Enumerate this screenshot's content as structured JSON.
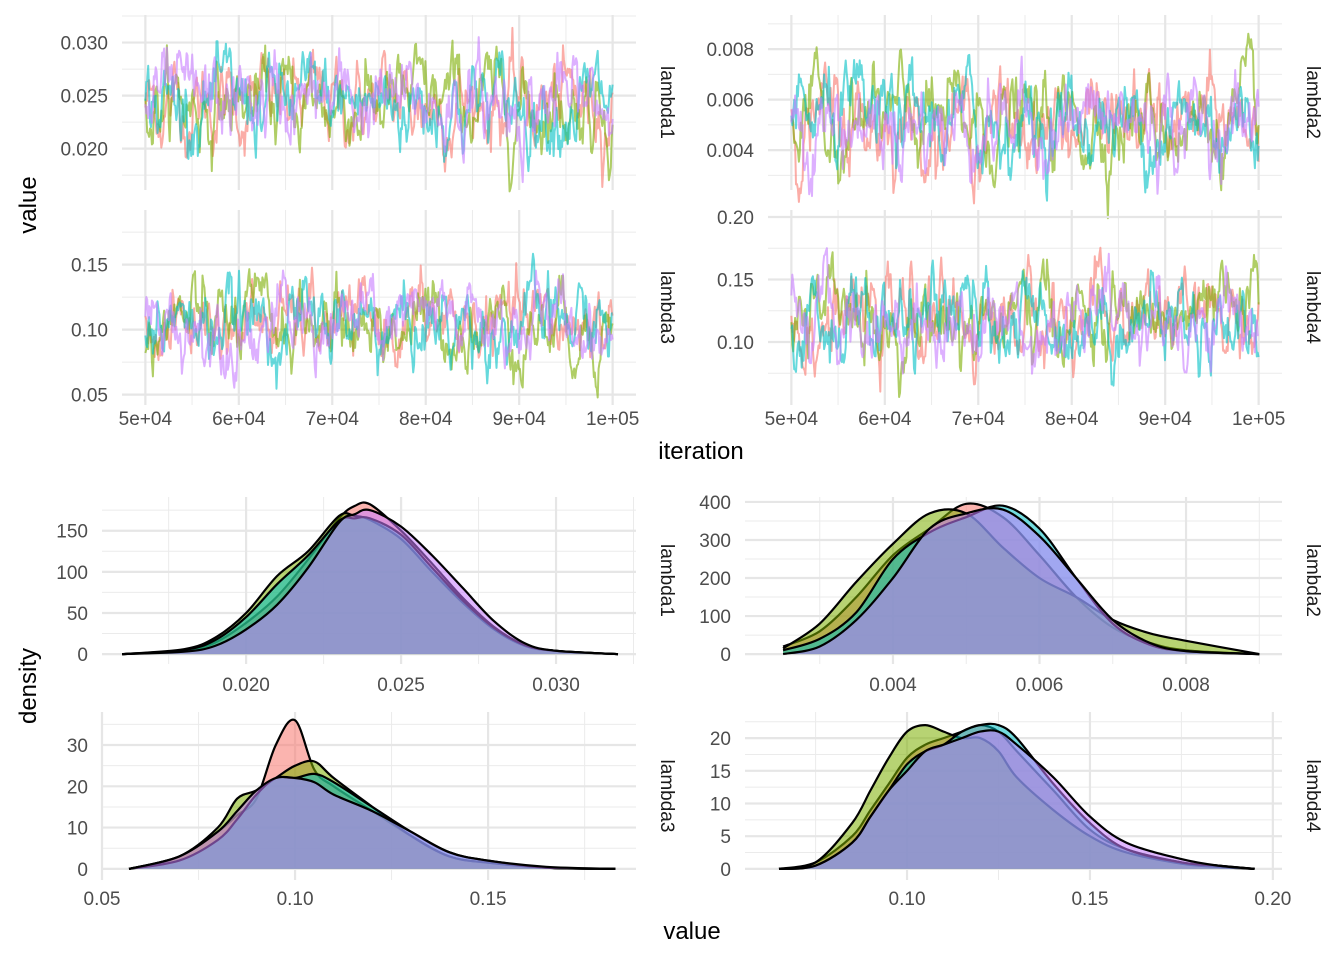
{
  "colors": {
    "chain1": "#F8766D",
    "chain2": "#7CAE00",
    "chain3": "#00BFC4",
    "chain4": "#C77CFF"
  },
  "chart_data": [
    {
      "type": "line",
      "title": "",
      "xlabel": "iteration",
      "ylabel": "value",
      "grid": true,
      "legend": "none",
      "chains": 4,
      "panels": [
        {
          "strip": "lambda1",
          "xlim": [
            47500,
            102500
          ],
          "ylim": [
            0.0161,
            0.0326
          ],
          "xticks": [
            50000,
            60000,
            70000,
            80000,
            90000,
            100000
          ],
          "xtick_labels": [
            "5e+04",
            "6e+04",
            "7e+04",
            "8e+04",
            "9e+04",
            "1e+05"
          ],
          "yticks": [
            0.02,
            0.025,
            0.03
          ],
          "ytick_labels": [
            "0.020",
            "0.025",
            "0.030"
          ],
          "approx_mean": 0.0243,
          "approx_sd": 0.0023,
          "show_x_labels": false
        },
        {
          "strip": "lambda2",
          "xlim": [
            47500,
            102500
          ],
          "ylim": [
            0.00242,
            0.00935
          ],
          "xticks": [
            50000,
            60000,
            70000,
            80000,
            90000,
            100000
          ],
          "xtick_labels": [
            "5e+04",
            "6e+04",
            "7e+04",
            "8e+04",
            "9e+04",
            "1e+05"
          ],
          "yticks": [
            0.004,
            0.006,
            0.008
          ],
          "ytick_labels": [
            "0.004",
            "0.006",
            "0.008"
          ],
          "approx_mean": 0.0051,
          "approx_sd": 0.001,
          "show_x_labels": false
        },
        {
          "strip": "lambda3",
          "xlim": [
            47500,
            102500
          ],
          "ylim": [
            0.042,
            0.192
          ],
          "xticks": [
            50000,
            60000,
            70000,
            80000,
            90000,
            100000
          ],
          "xtick_labels": [
            "5e+04",
            "6e+04",
            "7e+04",
            "8e+04",
            "9e+04",
            "1e+05"
          ],
          "yticks": [
            0.05,
            0.1,
            0.15
          ],
          "ytick_labels": [
            "0.05",
            "0.10",
            "0.15"
          ],
          "approx_mean": 0.104,
          "approx_sd": 0.017,
          "show_x_labels": true
        },
        {
          "strip": "lambda4",
          "xlim": [
            47500,
            102500
          ],
          "ylim": [
            0.0496,
            0.2056
          ],
          "xticks": [
            50000,
            60000,
            70000,
            80000,
            90000,
            100000
          ],
          "xtick_labels": [
            "5e+04",
            "6e+04",
            "7e+04",
            "8e+04",
            "9e+04",
            "1e+05"
          ],
          "yticks": [
            0.1,
            0.15,
            0.2
          ],
          "ytick_labels": [
            "0.10",
            "0.15",
            "0.20"
          ],
          "approx_mean": 0.118,
          "approx_sd": 0.019,
          "show_x_labels": true
        }
      ]
    },
    {
      "type": "area",
      "title": "",
      "xlabel": "value",
      "ylabel": "density",
      "grid": true,
      "legend": "none",
      "panels": [
        {
          "strip": "lambda1",
          "xlim": [
            0.01535,
            0.03258
          ],
          "ylim": [
            -12,
            191
          ],
          "xticks": [
            0.02,
            0.025,
            0.03
          ],
          "xtick_labels": [
            "0.020",
            "0.025",
            "0.030"
          ],
          "yticks": [
            0,
            50,
            100,
            150
          ],
          "ytick_labels": [
            "0",
            "50",
            "100",
            "150"
          ],
          "x": [
            0.016,
            0.018,
            0.019,
            0.02,
            0.021,
            0.022,
            0.023,
            0.0235,
            0.024,
            0.025,
            0.026,
            0.027,
            0.028,
            0.029,
            0.03,
            0.032
          ],
          "series": [
            {
              "values": [
                0,
                4,
                14,
                38,
                70,
                115,
                165,
                180,
                182,
                150,
                110,
                68,
                33,
                11,
                4,
                0
              ]
            },
            {
              "values": [
                0,
                6,
                20,
                50,
                95,
                125,
                168,
                168,
                163,
                140,
                100,
                62,
                30,
                10,
                4,
                0
              ]
            },
            {
              "values": [
                0,
                5,
                17,
                45,
                85,
                120,
                162,
                165,
                165,
                145,
                105,
                65,
                32,
                11,
                4,
                0
              ]
            },
            {
              "values": [
                0,
                3,
                10,
                30,
                60,
                105,
                160,
                170,
                175,
                155,
                120,
                80,
                40,
                13,
                4,
                0
              ]
            }
          ]
        },
        {
          "strip": "lambda2",
          "xlim": [
            0.00198,
            0.00931
          ],
          "ylim": [
            -26,
            413
          ],
          "xticks": [
            0.004,
            0.006,
            0.008
          ],
          "xtick_labels": [
            "0.004",
            "0.006",
            "0.008"
          ],
          "yticks": [
            0,
            100,
            200,
            300,
            400
          ],
          "ytick_labels": [
            "0",
            "100",
            "200",
            "300",
            "400"
          ],
          "x": [
            0.0025,
            0.003,
            0.0035,
            0.004,
            0.0045,
            0.005,
            0.0055,
            0.006,
            0.0065,
            0.007,
            0.0075,
            0.008,
            0.009
          ],
          "series": [
            {
              "values": [
                20,
                60,
                150,
                260,
                330,
                395,
                360,
                260,
                150,
                70,
                30,
                10,
                0
              ]
            },
            {
              "values": [
                15,
                80,
                190,
                290,
                370,
                370,
                280,
                200,
                150,
                90,
                55,
                35,
                0
              ]
            },
            {
              "values": [
                10,
                40,
                110,
                250,
                320,
                360,
                390,
                330,
                200,
                80,
                25,
                8,
                0
              ]
            },
            {
              "values": [
                0,
                20,
                90,
                200,
                330,
                370,
                380,
                310,
                200,
                90,
                30,
                8,
                0
              ]
            }
          ]
        },
        {
          "strip": "lambda3",
          "xlim": [
            0.05,
            0.1883
          ],
          "ylim": [
            -2.7,
            38
          ],
          "xticks": [
            0.05,
            0.1,
            0.15
          ],
          "xtick_labels": [
            "0.05",
            "0.10",
            "0.15"
          ],
          "yticks": [
            0,
            10,
            20,
            30
          ],
          "ytick_labels": [
            "0",
            "10",
            "20",
            "30"
          ],
          "x": [
            0.057,
            0.07,
            0.08,
            0.085,
            0.09,
            0.095,
            0.1,
            0.105,
            0.11,
            0.12,
            0.13,
            0.14,
            0.15,
            0.165,
            0.183
          ],
          "series": [
            {
              "values": [
                0,
                3,
                9,
                13,
                17,
                30,
                36,
                24,
                20,
                14,
                8,
                3,
                1.5,
                0.3,
                0
              ]
            },
            {
              "values": [
                0,
                3,
                10,
                17,
                19,
                22,
                25,
                26,
                22,
                15,
                8,
                3,
                1.5,
                0.3,
                0
              ]
            },
            {
              "values": [
                0,
                2,
                7,
                12,
                18,
                22,
                22,
                23,
                21,
                15,
                9,
                4,
                2,
                0.3,
                0
              ]
            },
            {
              "values": [
                0,
                3,
                9,
                14,
                19,
                22,
                22,
                21,
                18,
                14,
                9,
                4,
                2,
                0.5,
                0
              ]
            }
          ]
        },
        {
          "strip": "lambda4",
          "xlim": [
            0.0557,
            0.2025
          ],
          "ylim": [
            -1.7,
            24
          ],
          "xticks": [
            0.1,
            0.15,
            0.2
          ],
          "xtick_labels": [
            "0.10",
            "0.15",
            "0.20"
          ],
          "yticks": [
            0,
            5,
            10,
            15,
            20
          ],
          "ytick_labels": [
            "0",
            "5",
            "10",
            "15",
            "20"
          ],
          "x": [
            0.065,
            0.075,
            0.085,
            0.09,
            0.095,
            0.1,
            0.105,
            0.11,
            0.115,
            0.12,
            0.125,
            0.13,
            0.14,
            0.15,
            0.16,
            0.175,
            0.185,
            0.195
          ],
          "series": [
            {
              "values": [
                0,
                1,
                5,
                9,
                13,
                17,
                19,
                20,
                21,
                22,
                21,
                18,
                12,
                6,
                3,
                1,
                0.5,
                0
              ]
            },
            {
              "values": [
                0,
                1,
                7,
                12,
                17,
                21,
                22,
                21,
                20,
                20,
                18,
                14,
                9,
                5,
                2.5,
                0.8,
                0.3,
                0
              ]
            },
            {
              "values": [
                0,
                0.5,
                4,
                8,
                12,
                16,
                18,
                19,
                21,
                22,
                22,
                20,
                13,
                7,
                3,
                1,
                0.5,
                0
              ]
            },
            {
              "values": [
                0,
                0.5,
                4,
                8,
                12,
                15,
                18,
                19,
                20,
                21,
                21,
                19,
                14,
                8,
                4,
                1.5,
                0.5,
                0
              ]
            }
          ]
        }
      ]
    }
  ]
}
